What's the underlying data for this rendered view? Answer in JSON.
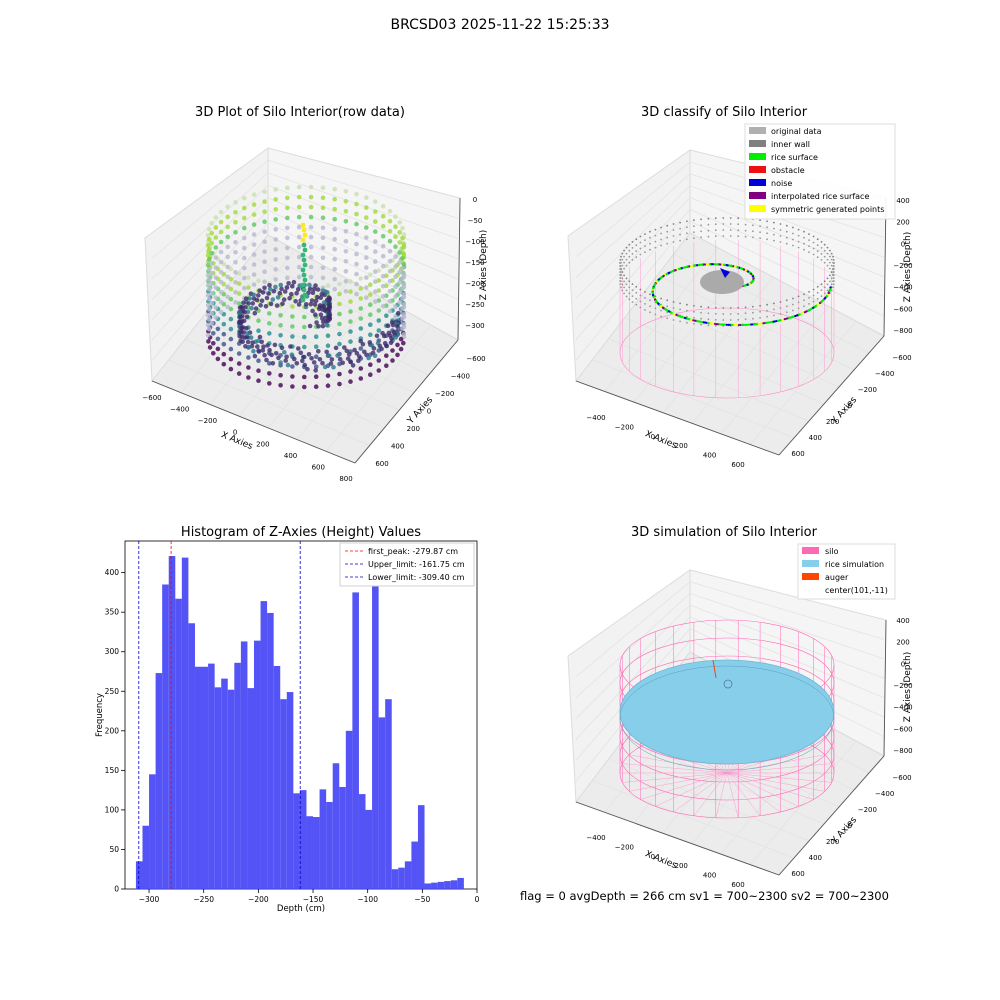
{
  "figure": {
    "suptitle": "BRCSD03 2025-11-22 15:25:33",
    "footer": "flag = 0     avgDepth = 266 cm  sv1 = 700~2300  sv2 = 700~2300"
  },
  "panels": {
    "raw": {
      "title": "3D Plot of Silo Interior(row data)",
      "xlabel": "X Axies",
      "ylabel": "Y Axies",
      "zlabel": "Z Axies (Depth)",
      "xticks": [
        "−600",
        "−400",
        "−200",
        "0",
        "200",
        "400",
        "600",
        "800"
      ],
      "yticks": [
        "−600",
        "−400",
        "−200",
        "0",
        "200",
        "400",
        "600"
      ],
      "zticks": [
        "0",
        "−50",
        "−100",
        "−150",
        "−200",
        "−250",
        "−300"
      ]
    },
    "classify": {
      "title": "3D classify of Silo Interior",
      "xlabel": "X Axies",
      "ylabel": "Y Axies",
      "zlabel": "Z Axies (Depth)",
      "xticks": [
        "−400",
        "−200",
        "0",
        "200",
        "400",
        "600"
      ],
      "yticks": [
        "−600",
        "−400",
        "−200",
        "0",
        "200",
        "400",
        "600"
      ],
      "zticks": [
        "400",
        "200",
        "0",
        "−200",
        "−400",
        "−600",
        "−800"
      ],
      "legend": [
        {
          "label": "original data",
          "color": "#b0b0b0"
        },
        {
          "label": "inner wall",
          "color": "#808080"
        },
        {
          "label": "rice surface",
          "color": "#00ee00"
        },
        {
          "label": "obstacle",
          "color": "#ee1111"
        },
        {
          "label": "noise",
          "color": "#0000dd"
        },
        {
          "label": "interpolated rice surface",
          "color": "#800080"
        },
        {
          "label": "symmetric generated points",
          "color": "#ffff00"
        }
      ]
    },
    "simulation": {
      "title": "3D simulation of Silo Interior",
      "xlabel": "X Axies",
      "ylabel": "Y Axies",
      "zlabel": "Z Axies (Depth)",
      "xticks": [
        "−400",
        "−200",
        "0",
        "200",
        "400",
        "600"
      ],
      "yticks": [
        "−600",
        "−400",
        "−200",
        "0",
        "200",
        "400",
        "600"
      ],
      "zticks": [
        "400",
        "200",
        "0",
        "−200",
        "−400",
        "−600",
        "−800"
      ],
      "legend": [
        {
          "label": "silo",
          "color": "#ff69b4"
        },
        {
          "label": "rice simulation",
          "color": "#87ceeb"
        },
        {
          "label": "auger",
          "color": "#ff4500"
        },
        {
          "label": "center(101,-11)",
          "color": ""
        }
      ]
    }
  },
  "chart_data": [
    {
      "type": "bar",
      "title": "Histogram of Z-Axies (Height) Values",
      "xlabel": "Depth (cm)",
      "ylabel": "Frequency",
      "xlim": [
        -322,
        0
      ],
      "ylim": [
        0,
        440
      ],
      "xticks": [
        -300,
        -250,
        -200,
        -150,
        -100,
        -50,
        0
      ],
      "yticks": [
        0,
        50,
        100,
        150,
        200,
        250,
        300,
        350,
        400
      ],
      "bar_color": "#4a4af5",
      "bin_start": -312,
      "bin_width": 6,
      "values": [
        35,
        80,
        145,
        273,
        385,
        421,
        367,
        419,
        336,
        281,
        281,
        285,
        255,
        266,
        252,
        286,
        313,
        254,
        314,
        364,
        349,
        282,
        240,
        249,
        121,
        125,
        92,
        91,
        126,
        110,
        159,
        129,
        200,
        375,
        120,
        100,
        400,
        217,
        240,
        25,
        27,
        35,
        60,
        106,
        7,
        8,
        9,
        10,
        11,
        14
      ],
      "vlines": [
        {
          "label": "first_peak: -279.87 cm",
          "x": -279.87,
          "color": "#ff0000"
        },
        {
          "label": "Upper_limit: -161.75 cm",
          "x": -161.75,
          "color": "#0000cc"
        },
        {
          "label": "Lower_limit: -309.40 cm",
          "x": -309.4,
          "color": "#0000cc"
        }
      ],
      "legend_position": "top-right"
    }
  ]
}
